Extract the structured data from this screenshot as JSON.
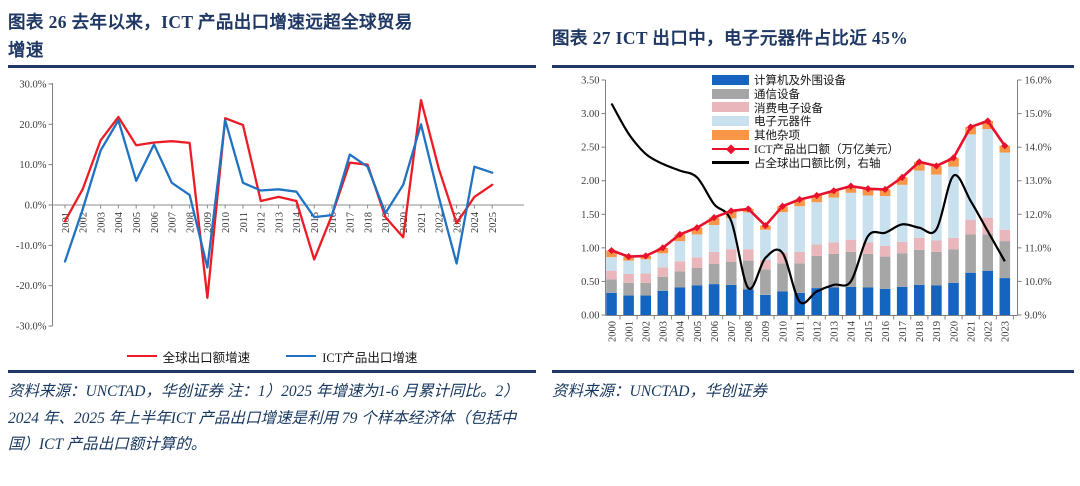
{
  "page": {
    "background": "#ffffff",
    "accent_navy": "#1f3864",
    "source_text_color": "#17375e"
  },
  "fig26": {
    "title_lines": [
      "图表 26  去年以来，ICT 产品出口增速远超全球贸易",
      "增速"
    ],
    "source_note": "资料来源：UNCTAD，华创证券  注：1）2025 年增速为1-6 月累计同比。2）2024 年、2025 年上半年ICT 产品出口增速是利用 79 个样本经济体（包括中国）ICT 产品出口额计算的。"
  },
  "fig27": {
    "title": "图表 27  ICT 出口中，电子元器件占比近 45%",
    "source_note": "资料来源：UNCTAD，华创证券"
  },
  "chart_data": [
    {
      "type": "line",
      "title": "去年以来，ICT产品出口增速远超全球贸易增速",
      "x": [
        "2001",
        "2002",
        "2003",
        "2004",
        "2005",
        "2006",
        "2007",
        "2008",
        "2009",
        "2010",
        "2011",
        "2012",
        "2013",
        "2014",
        "2015",
        "2016",
        "2017",
        "2018",
        "2019",
        "2020",
        "2021",
        "2022",
        "2023",
        "2024",
        "2025"
      ],
      "series": [
        {
          "name": "全球出口额增速",
          "color": "#ed1c24",
          "values": [
            -4,
            4,
            16,
            21.8,
            14.8,
            15.5,
            15.8,
            15.4,
            -23,
            21.5,
            19.8,
            1,
            2,
            1,
            -13.5,
            -2.5,
            10.5,
            10,
            -3,
            -8,
            26,
            9,
            -4.5,
            2,
            5
          ]
        },
        {
          "name": "ICT产品出口增速",
          "color": "#2173c2",
          "values": [
            -14,
            -1,
            13.5,
            21,
            6,
            15,
            5.5,
            2.5,
            -15.5,
            21,
            5.5,
            3.6,
            3.9,
            3.3,
            -3,
            -2.5,
            12.5,
            9.5,
            -2,
            5,
            20,
            2,
            -14.5,
            9.5,
            8
          ]
        }
      ],
      "ylim": [
        -30,
        30
      ],
      "ytick_labels": [
        "30.0%",
        "20.0%",
        "10.0%",
        "0.0%",
        "-10.0%",
        "-20.0%",
        "-30.0%"
      ],
      "grid": false,
      "legend_position": "bottom"
    },
    {
      "type": "stacked-bar+line",
      "title": "ICT 出口中，电子元器件占比近 45%",
      "categories": [
        "2000",
        "2001",
        "2002",
        "2003",
        "2004",
        "2005",
        "2006",
        "2007",
        "2008",
        "2009",
        "2010",
        "2011",
        "2012",
        "2013",
        "2014",
        "2015",
        "2016",
        "2017",
        "2018",
        "2019",
        "2020",
        "2021",
        "2022",
        "2023"
      ],
      "series": [
        {
          "name": "计算机及外围设备",
          "color": "#1565c0",
          "values": [
            0.33,
            0.29,
            0.29,
            0.36,
            0.41,
            0.44,
            0.46,
            0.45,
            0.38,
            0.3,
            0.35,
            0.33,
            0.4,
            0.41,
            0.42,
            0.41,
            0.39,
            0.42,
            0.45,
            0.44,
            0.48,
            0.63,
            0.66,
            0.55
          ]
        },
        {
          "name": "通信设备",
          "color": "#a6a6a6",
          "values": [
            0.2,
            0.19,
            0.19,
            0.21,
            0.24,
            0.26,
            0.3,
            0.34,
            0.43,
            0.38,
            0.42,
            0.44,
            0.48,
            0.5,
            0.52,
            0.5,
            0.48,
            0.5,
            0.52,
            0.5,
            0.5,
            0.57,
            0.54,
            0.55
          ]
        },
        {
          "name": "消费电子设备",
          "color": "#e9b7bb",
          "values": [
            0.13,
            0.13,
            0.14,
            0.14,
            0.15,
            0.16,
            0.18,
            0.19,
            0.17,
            0.14,
            0.16,
            0.17,
            0.17,
            0.17,
            0.18,
            0.17,
            0.16,
            0.17,
            0.18,
            0.17,
            0.17,
            0.22,
            0.25,
            0.17
          ]
        },
        {
          "name": "电子元器件",
          "color": "#c9e0ef",
          "values": [
            0.2,
            0.2,
            0.21,
            0.21,
            0.3,
            0.34,
            0.4,
            0.46,
            0.55,
            0.45,
            0.6,
            0.68,
            0.63,
            0.67,
            0.7,
            0.7,
            0.74,
            0.85,
            1.0,
            0.98,
            1.06,
            1.27,
            1.32,
            1.15
          ]
        },
        {
          "name": "其他杂项",
          "color": "#f79646",
          "values": [
            0.1,
            0.06,
            0.05,
            0.08,
            0.1,
            0.1,
            0.11,
            0.11,
            0.05,
            0.06,
            0.09,
            0.1,
            0.1,
            0.1,
            0.1,
            0.1,
            0.1,
            0.11,
            0.13,
            0.13,
            0.13,
            0.11,
            0.12,
            0.1
          ]
        }
      ],
      "line_series": [
        {
          "name": "ICT产品出口额（万亿美元）",
          "color": "#e8112d",
          "axis": "left",
          "marker": "diamond",
          "values": [
            0.96,
            0.87,
            0.88,
            1.0,
            1.2,
            1.3,
            1.45,
            1.55,
            1.58,
            1.33,
            1.62,
            1.72,
            1.78,
            1.85,
            1.92,
            1.88,
            1.87,
            2.05,
            2.28,
            2.22,
            2.34,
            2.8,
            2.89,
            2.52
          ]
        },
        {
          "name": "占全球出口额比例，右轴",
          "color": "#000000",
          "axis": "right",
          "values": [
            15.3,
            14.4,
            13.8,
            13.5,
            13.3,
            13.1,
            12.3,
            11.8,
            9.8,
            10.7,
            10.85,
            9.4,
            9.7,
            9.9,
            10.0,
            11.35,
            11.45,
            11.7,
            11.6,
            11.55,
            13.15,
            12.4,
            11.5,
            10.6
          ]
        }
      ],
      "ylim_left": [
        0,
        3.5
      ],
      "ylim_right": [
        9,
        16
      ],
      "ytick_labels_left": [
        "3.50",
        "3.00",
        "2.50",
        "2.00",
        "1.50",
        "1.00",
        "0.50",
        "0.00"
      ],
      "ytick_labels_right": [
        "16.0%",
        "15.0%",
        "14.0%",
        "13.0%",
        "12.0%",
        "11.0%",
        "10.0%",
        "9.0%"
      ],
      "grid": false,
      "legend_position": "inside-top-left"
    }
  ]
}
